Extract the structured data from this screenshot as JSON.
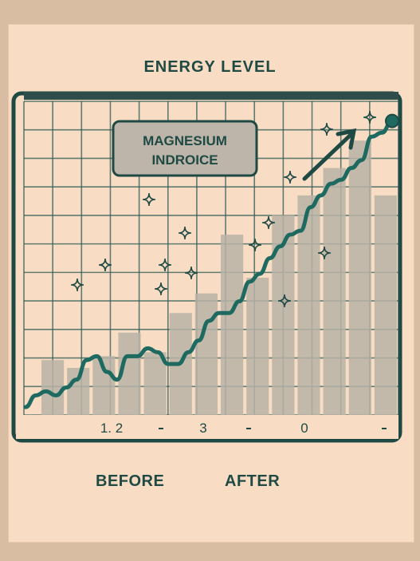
{
  "colors": {
    "background": "#d9bda3",
    "paper": "#f8dcc4",
    "ink": "#1f4a44",
    "line": "#1e6a60",
    "bars": "#b9b3a7",
    "grid": "#2d5b55"
  },
  "chart_data": {
    "type": "line",
    "title": "ENERGY LEVEL",
    "annotation": "MAGNESIUM\nINDROICE",
    "x_tick_labels": [
      "1. 2",
      "3",
      "0"
    ],
    "x_group_labels": [
      "BEFORE",
      "AFTER"
    ],
    "grid": true,
    "series": [
      {
        "values": [
          0.2,
          0.5,
          0.6,
          0.5,
          0.7,
          0.9,
          1.4,
          1.5,
          1.1,
          0.9,
          1.5,
          1.5,
          1.7,
          1.6,
          1.3,
          1.3,
          1.6,
          1.9,
          2.4,
          2.6,
          2.6,
          2.9,
          3.4,
          3.6,
          4.0,
          4.3,
          4.6,
          4.7,
          5.3,
          5.6,
          5.9,
          6.0,
          6.3,
          6.5,
          7.1,
          7.2,
          7.5
        ]
      }
    ],
    "bars": [
      1.4,
      1.2,
      1.5,
      2.1,
      1.6,
      2.6,
      3.1,
      4.6,
      3.5,
      5.1,
      5.6,
      6.3,
      7.0,
      5.6
    ]
  }
}
